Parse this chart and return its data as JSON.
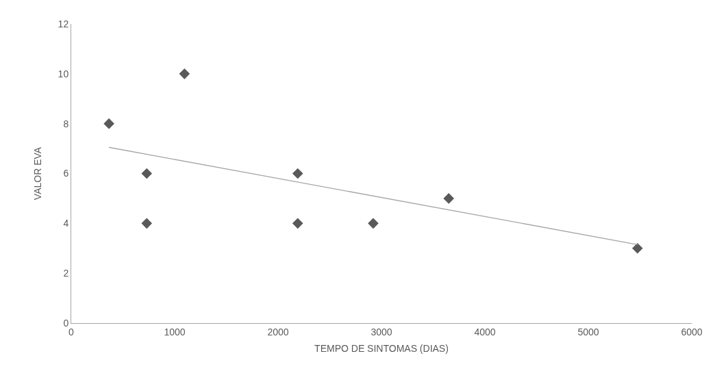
{
  "chart_data": {
    "type": "scatter",
    "xlabel": "TEMPO DE SINTOMAS (DIAS)",
    "ylabel": "VALOR EVA",
    "grid": false,
    "xlim": [
      0,
      6000
    ],
    "xticks": [
      0,
      1000,
      2000,
      3000,
      4000,
      5000,
      6000
    ],
    "ylim": [
      0,
      12
    ],
    "yticks": [
      0,
      2,
      4,
      6,
      8,
      10,
      12
    ],
    "series": [
      {
        "marker": "diamond",
        "color": "#595959",
        "x": [
          365,
          730,
          730,
          1095,
          2190,
          2190,
          2920,
          3650,
          5475
        ],
        "values": [
          8,
          6,
          4,
          10,
          6,
          4,
          4,
          5,
          3
        ]
      },
      {
        "type": "line",
        "marker": "none",
        "color": "#a6a6a6",
        "x": [
          365,
          5475
        ],
        "values": [
          7.05,
          3.15
        ]
      }
    ]
  }
}
